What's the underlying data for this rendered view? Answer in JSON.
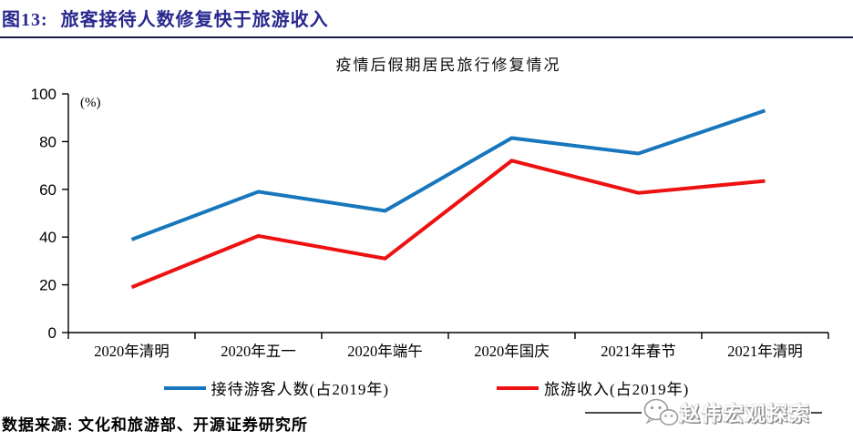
{
  "header": {
    "fig_label": "图13:",
    "title": "旅客接待人数修复快于旅游收入"
  },
  "chart_data": {
    "type": "line",
    "title": "疫情后假期居民旅行修复情况",
    "unit_label": "(%)",
    "categories": [
      "2020年清明",
      "2020年五一",
      "2020年端午",
      "2020年国庆",
      "2021年春节",
      "2021年清明"
    ],
    "series": [
      {
        "key": "visitors",
        "name": "接待游客人数(占2019年)",
        "color": "#1877BC",
        "values": [
          39,
          59,
          51,
          81.5,
          75,
          93
        ]
      },
      {
        "key": "revenue",
        "name": "旅游收入(占2019年)",
        "color": "#EE1111",
        "values": [
          19,
          40.5,
          31,
          72,
          58.5,
          63.5
        ]
      }
    ],
    "ylim": [
      0,
      100
    ],
    "ytick_step": 20,
    "grid": false,
    "legend_position": "bottom",
    "axis_color": "#000000"
  },
  "footer": {
    "source": "数据来源:  文化和旅游部、开源证券研究所"
  },
  "watermark": {
    "icon": "wechat-icon",
    "text": "赵伟宏观探索"
  }
}
